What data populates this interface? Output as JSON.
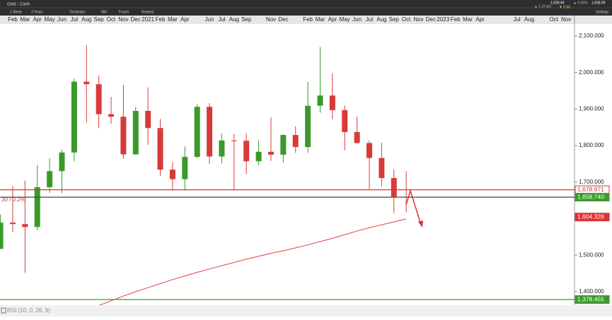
{
  "header": {
    "title": "Gold - Cash",
    "buttons": [
      "1 Week",
      "3 Years",
      "Templates",
      "Mkt",
      "Forum",
      "Related"
    ],
    "quote": {
      "change_pct": "▲ 0.06%",
      "change_pts": "▲ 1.10 pts",
      "bid": "1,658.49",
      "spread": "▼ 0.50",
      "ask": "1,658.99"
    },
    "settings": "Settings"
  },
  "indicator": "RSI (10, 0, 26, 9)",
  "chart_data": {
    "type": "candlestick",
    "categories": [
      null,
      "Feb",
      "Mar",
      "Apr",
      "May",
      "Jun",
      "Jul",
      "Aug",
      "Sep",
      "Oct",
      "Nov",
      "Dec",
      "2021",
      "Feb",
      "Mar",
      "Apr",
      null,
      "Jun",
      "Jul",
      "Aug",
      "Sep",
      null,
      "Nov",
      "Dec",
      null,
      "Feb",
      "Mar",
      "Apr",
      "May",
      "Jun",
      "Jul",
      "Aug",
      "Sep",
      "Oct",
      "Nov",
      "Dec",
      "2023",
      "Feb",
      "Mar",
      "Apr",
      null,
      null,
      "Jul",
      "Aug",
      null,
      "Oct",
      "Nov"
    ],
    "open": [
      1517,
      1589,
      1585,
      1577,
      1686,
      1730,
      1781,
      1975,
      1968,
      1886,
      1879,
      1776,
      1895,
      1848,
      1734,
      1708,
      1769,
      1906,
      1770,
      1814,
      1813,
      1757,
      1783,
      1775,
      1829,
      1796,
      1909,
      1937,
      1897,
      1837,
      1807,
      1766,
      1711,
      1660,
      null,
      null,
      null,
      null,
      null,
      null,
      null,
      null,
      null,
      null,
      null,
      null,
      null
    ],
    "high": [
      1611,
      1689,
      1704,
      1747,
      1765,
      1789,
      1983,
      2075,
      1992,
      1933,
      1966,
      1906,
      1959,
      1873,
      1755,
      1798,
      1913,
      1916,
      1833,
      1832,
      1834,
      1814,
      1877,
      1831,
      1853,
      1974,
      2070,
      1998,
      1910,
      1879,
      1814,
      1808,
      1735,
      1730,
      null,
      null,
      null,
      null,
      null,
      null,
      null,
      null,
      null,
      null,
      null,
      null,
      null
    ],
    "low": [
      1517,
      1563,
      1451,
      1568,
      1670,
      1670,
      1757,
      1863,
      1848,
      1860,
      1764,
      1775,
      1802,
      1717,
      1677,
      1677,
      1766,
      1750,
      1751,
      1677,
      1722,
      1746,
      1758,
      1753,
      1780,
      1780,
      1890,
      1872,
      1787,
      1805,
      1681,
      1688,
      1615,
      1617,
      null,
      null,
      null,
      null,
      null,
      null,
      null,
      null,
      null,
      null,
      null,
      null,
      null
    ],
    "close": [
      1589,
      1585,
      1577,
      1686,
      1730,
      1781,
      1975,
      1968,
      1886,
      1879,
      1776,
      1895,
      1848,
      1734,
      1708,
      1769,
      1906,
      1770,
      1814,
      1813,
      1757,
      1783,
      1775,
      1829,
      1796,
      1909,
      1937,
      1897,
      1837,
      1807,
      1766,
      1711,
      1660,
      1659,
      null,
      null,
      null,
      null,
      null,
      null,
      null,
      null,
      null,
      null,
      null,
      null,
      null
    ],
    "up_color": "#3a9a2a",
    "down_color": "#d83a3a",
    "moving_average": {
      "color": "#e04040",
      "values": [
        null,
        null,
        null,
        null,
        null,
        null,
        null,
        null,
        1362,
        1375,
        1388,
        1400,
        1411,
        1422,
        1433,
        1443,
        1453,
        1462,
        1471,
        1480,
        1489,
        1497,
        1505,
        1512,
        1520,
        1528,
        1537,
        1546,
        1556,
        1566,
        1575,
        1583,
        1591,
        1599,
        null,
        null,
        null,
        null,
        null,
        null,
        null,
        null,
        null,
        null,
        null,
        null,
        null
      ]
    },
    "ylim": [
      1363,
      2156
    ],
    "yticks": [
      {
        "value": 1400,
        "label": "1,400.000"
      },
      {
        "value": 1500,
        "label": "1,500.000"
      },
      {
        "value": 1600,
        "label": "1,600.000"
      },
      {
        "value": 1700,
        "label": "1,700.000"
      },
      {
        "value": 1800,
        "label": "1,800.000"
      },
      {
        "value": 1900,
        "label": "1,900.000"
      },
      {
        "value": 2000,
        "label": "2,000.000"
      },
      {
        "value": 2100,
        "label": "2,100.000"
      }
    ],
    "levels": [
      {
        "value": 1678.971,
        "label": "1,678.971",
        "color": "#e03030",
        "line": true
      },
      {
        "value": 1658.74,
        "label": "1,658.740",
        "color": "#3a9a2a",
        "line": true
      },
      {
        "value": 1604.328,
        "label": "1,604.328",
        "color": "#e03030",
        "line": false
      },
      {
        "value": 1378.455,
        "label": "1,378.455",
        "color": "#3a9a2a",
        "line": true
      }
    ],
    "annotation": "30 / 0.2%"
  }
}
